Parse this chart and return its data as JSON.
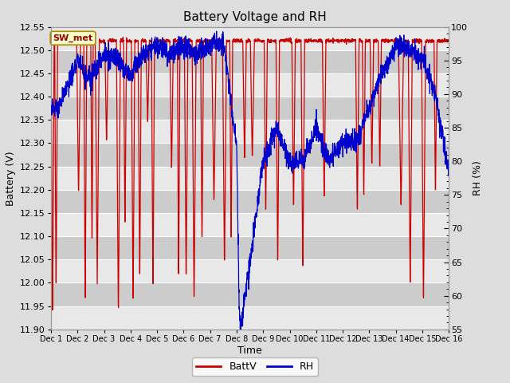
{
  "title": "Battery Voltage and RH",
  "xlabel": "Time",
  "ylabel_left": "Battery (V)",
  "ylabel_right": "RH (%)",
  "annotation": "SW_met",
  "ylim_left": [
    11.9,
    12.55
  ],
  "ylim_right": [
    55,
    100
  ],
  "yticks_left": [
    11.9,
    11.95,
    12.0,
    12.05,
    12.1,
    12.15,
    12.2,
    12.25,
    12.3,
    12.35,
    12.4,
    12.45,
    12.5,
    12.55
  ],
  "yticks_right": [
    55,
    60,
    65,
    70,
    75,
    80,
    85,
    90,
    95,
    100
  ],
  "xtick_labels": [
    "Dec 1",
    "Dec 2",
    "Dec 3",
    "Dec 4",
    "Dec 5",
    "Dec 6",
    "Dec 7",
    "Dec 8",
    "Dec 9",
    "Dec 10",
    "Dec 11",
    "Dec 12",
    "Dec 13",
    "Dec 14",
    "Dec 15",
    "Dec 16"
  ],
  "batt_color": "#cc0000",
  "rh_color": "#0000cc",
  "legend_batt": "BattV",
  "legend_rh": "RH",
  "bg_color": "#dddddd",
  "plot_bg_dark": "#cccccc",
  "plot_bg_light": "#e8e8e8",
  "grid_color": "#ffffff",
  "title_fontsize": 11,
  "axis_fontsize": 9,
  "tick_fontsize": 8,
  "n_days": 15,
  "pts_per_day": 144
}
